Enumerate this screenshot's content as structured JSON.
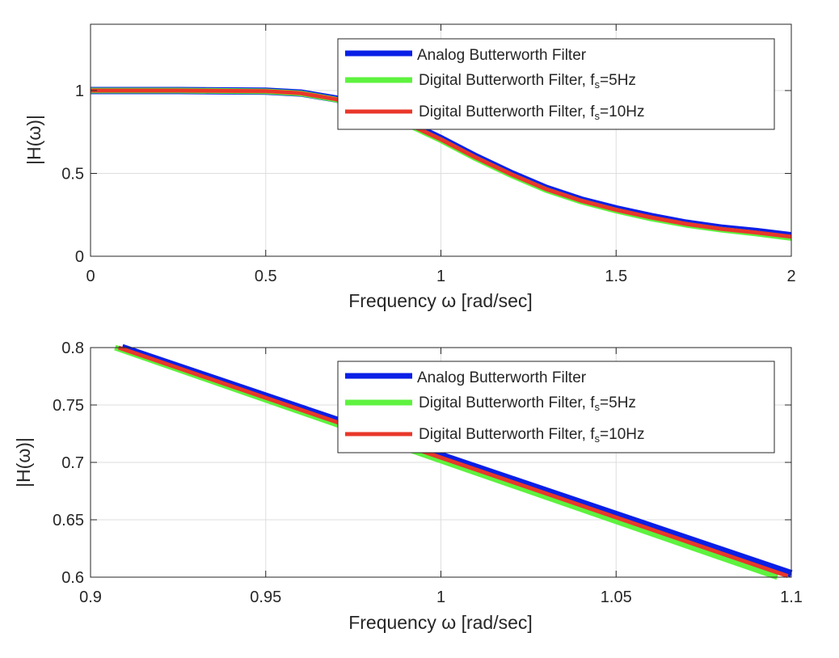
{
  "chart_data": [
    {
      "type": "line",
      "xlabel": "Frequency  ω  [rad/sec]",
      "ylabel": "|H(ω)|",
      "xlim": [
        0,
        2
      ],
      "ylim": [
        0,
        1.4
      ],
      "xticks": [
        "0",
        "0.5",
        "1",
        "1.5",
        "2"
      ],
      "yticks": [
        "0",
        "0.5",
        "1"
      ],
      "grid": true,
      "legend_position": "top-right",
      "series": [
        {
          "name": "Analog Butterworth Filter",
          "color": "#0a1fe6",
          "x": [
            0,
            0.25,
            0.5,
            0.6,
            0.7,
            0.8,
            0.9,
            1.0,
            1.1,
            1.2,
            1.3,
            1.4,
            1.5,
            1.6,
            1.7,
            1.8,
            1.9,
            2.0
          ],
          "y": [
            1.0,
            1.0,
            0.996,
            0.985,
            0.95,
            0.89,
            0.81,
            0.71,
            0.6,
            0.5,
            0.41,
            0.34,
            0.286,
            0.24,
            0.2,
            0.17,
            0.15,
            0.124
          ]
        },
        {
          "name": "Digital  Butterworth  Filter,  f",
          "name_sub": "s",
          "name_suffix": "=5Hz",
          "color": "#5ef23f",
          "x": [
            0,
            0.25,
            0.5,
            0.6,
            0.7,
            0.8,
            0.9,
            1.0,
            1.1,
            1.2,
            1.3,
            1.4,
            1.5,
            1.6,
            1.7,
            1.8,
            1.9,
            2.0
          ],
          "y": [
            1.0,
            1.0,
            0.995,
            0.983,
            0.946,
            0.885,
            0.8,
            0.7,
            0.59,
            0.49,
            0.4,
            0.33,
            0.275,
            0.228,
            0.19,
            0.16,
            0.137,
            0.11
          ]
        },
        {
          "name": "Digital  Butterworth  Filter,  f",
          "name_sub": "s",
          "name_suffix": "=10Hz",
          "color": "#e8372a",
          "x": [
            0,
            0.25,
            0.5,
            0.6,
            0.7,
            0.8,
            0.9,
            1.0,
            1.1,
            1.2,
            1.3,
            1.4,
            1.5,
            1.6,
            1.7,
            1.8,
            1.9,
            2.0
          ],
          "y": [
            1.0,
            1.0,
            0.996,
            0.984,
            0.948,
            0.888,
            0.805,
            0.705,
            0.595,
            0.495,
            0.405,
            0.335,
            0.28,
            0.234,
            0.195,
            0.165,
            0.143,
            0.118
          ]
        }
      ]
    },
    {
      "type": "line",
      "xlabel": "Frequency  ω  [rad/sec]",
      "ylabel": "|H(ω)|",
      "xlim": [
        0.9,
        1.1
      ],
      "ylim": [
        0.6,
        0.8
      ],
      "xticks": [
        "0.9",
        "0.95",
        "1",
        "1.05",
        "1.1"
      ],
      "yticks": [
        "0.6",
        "0.65",
        "0.7",
        "0.75",
        "0.8"
      ],
      "grid": true,
      "legend_position": "top-right",
      "series": [
        {
          "name": "Analog Butterworth Filter",
          "color": "#0a1fe6",
          "x": [
            0.909,
            1.1
          ],
          "y": [
            0.8,
            0.603
          ]
        },
        {
          "name": "Digital  Butterworth  Filter,  f",
          "name_sub": "s",
          "name_suffix": "=5Hz",
          "color": "#5ef23f",
          "x": [
            0.907,
            1.096
          ],
          "y": [
            0.8,
            0.6
          ]
        },
        {
          "name": "Digital  Butterworth  Filter,  f",
          "name_sub": "s",
          "name_suffix": "=10Hz",
          "color": "#e8372a",
          "x": [
            0.908,
            1.099
          ],
          "y": [
            0.8,
            0.601
          ]
        }
      ]
    }
  ]
}
